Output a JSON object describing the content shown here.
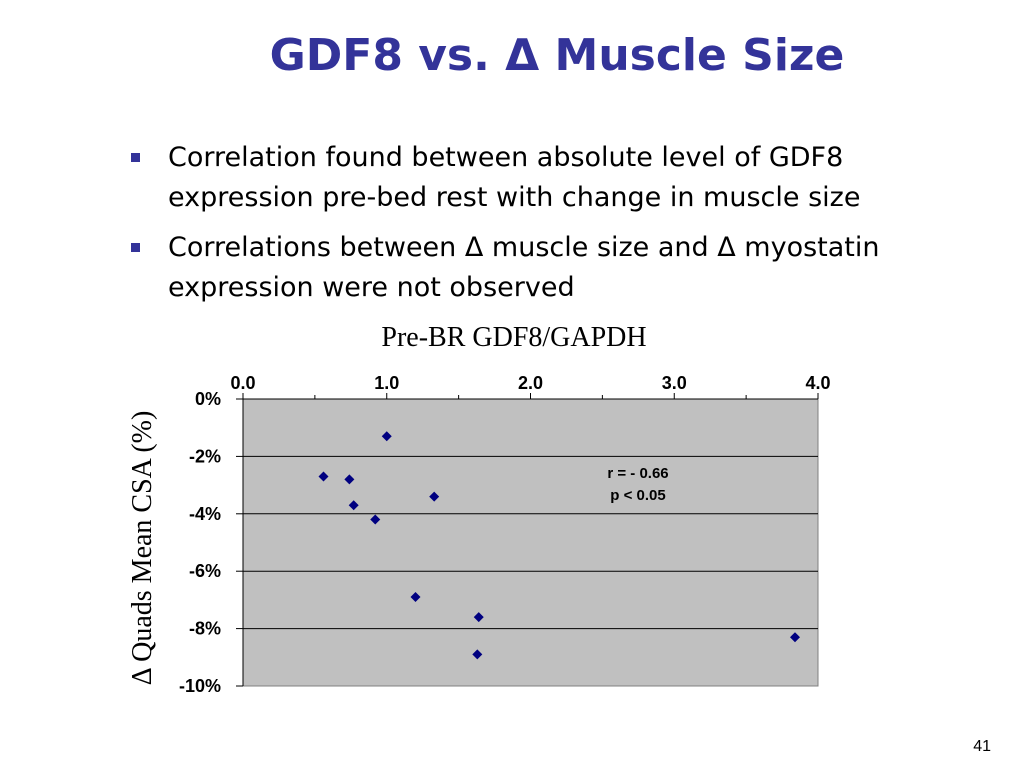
{
  "slide": {
    "title": "GDF8 vs. Δ Muscle Size",
    "bullets": [
      "Correlation found between absolute level of GDF8 expression pre-bed rest with change in muscle size",
      "Correlations between Δ muscle size and Δ myostatin expression were not observed"
    ],
    "page_number": "41"
  },
  "chart_data": {
    "type": "scatter",
    "title": "Pre-BR GDF8/GAPDH",
    "xlabel": "",
    "ylabel": "Δ Quads Mean CSA (%)",
    "xlim": [
      0,
      4
    ],
    "ylim": [
      -10,
      0
    ],
    "x_ticks": [
      "0.0",
      "1.0",
      "2.0",
      "3.0",
      "4.0"
    ],
    "y_ticks": [
      "0%",
      "-2%",
      "-4%",
      "-6%",
      "-8%",
      "-10%"
    ],
    "x_axis_position": "top",
    "grid": "horizontal",
    "points": [
      {
        "x": 0.56,
        "y": -2.7
      },
      {
        "x": 0.74,
        "y": -2.8
      },
      {
        "x": 0.77,
        "y": -3.7
      },
      {
        "x": 0.92,
        "y": -4.2
      },
      {
        "x": 1.0,
        "y": -1.3
      },
      {
        "x": 1.33,
        "y": -3.4
      },
      {
        "x": 1.2,
        "y": -6.9
      },
      {
        "x": 1.64,
        "y": -7.6
      },
      {
        "x": 1.63,
        "y": -8.9
      },
      {
        "x": 3.84,
        "y": -8.3
      }
    ],
    "annotations": [
      "r = - 0.66",
      "p < 0.05"
    ],
    "colors": {
      "marker": "#000080",
      "plot_background": "#c0c0c0",
      "gridline": "#000000"
    }
  }
}
